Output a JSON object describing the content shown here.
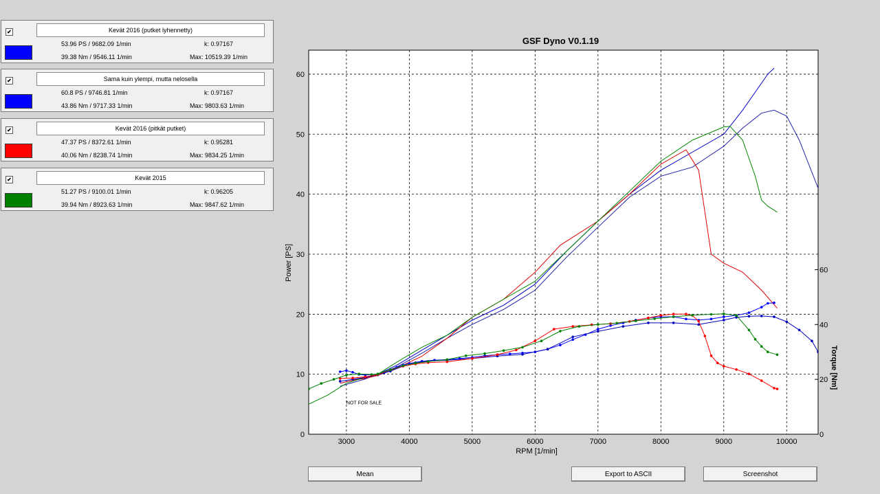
{
  "runs": [
    {
      "checked": true,
      "name": "Kevät 2016 (putket lyhennetty)",
      "color": "#0000ff",
      "power": "53.96 PS / 9682.09 1/min",
      "k": "k: 0.97167",
      "torque": "39.38 Nm / 9546.11 1/min",
      "max": "Max: 10519.39 1/min"
    },
    {
      "checked": true,
      "name": "Sama kuin ylempi, mutta nelosella",
      "color": "#0000ff",
      "power": "60.8 PS / 9746.81 1/min",
      "k": "k: 0.97167",
      "torque": "43.86 Nm / 9717.33 1/min",
      "max": "Max: 9803.63 1/min"
    },
    {
      "checked": true,
      "name": "Kevät 2016 (pitkät putket)",
      "color": "#ff0000",
      "power": "47.37 PS / 8372.61 1/min",
      "k": "k: 0.95281",
      "torque": "40.06 Nm / 8238.74 1/min",
      "max": "Max: 9834.25 1/min"
    },
    {
      "checked": true,
      "name": "Kevät 2015",
      "color": "#008000",
      "power": "51.27 PS / 9100.01 1/min",
      "k": "k: 0.96205",
      "torque": "39.94 Nm / 8923.63 1/min",
      "max": "Max: 9847.62 1/min"
    }
  ],
  "buttons": {
    "mean": "Mean",
    "export": "Export to ASCII",
    "screenshot": "Screenshot"
  },
  "chart_data": {
    "type": "line",
    "title": "GSF Dyno V0.1.19",
    "xlabel": "RPM [1/min]",
    "ylabel": "Power [PS]",
    "y2label": "Torque [Nm]",
    "xlim": [
      2400,
      10500
    ],
    "ylim": [
      0,
      64
    ],
    "y2lim": [
      0,
      140
    ],
    "xticks": [
      3000,
      4000,
      5000,
      6000,
      7000,
      8000,
      9000,
      10000
    ],
    "yticks": [
      0,
      10,
      20,
      30,
      40,
      50,
      60
    ],
    "y2ticks": [
      0,
      20,
      40,
      60
    ],
    "grid": true,
    "annotation": "NOT FOR SALE",
    "annotation_at": {
      "x": 3000,
      "y": 5
    },
    "power_series": [
      {
        "color": "#0000cc",
        "x": [
          2900,
          3100,
          3300,
          3500,
          3800,
          4200,
          4600,
          5000,
          5500,
          6000,
          6500,
          7000,
          7500,
          8000,
          8500,
          9000,
          9300,
          9500,
          9700,
          9800
        ],
        "y": [
          8.5,
          9.0,
          9.4,
          10.0,
          11.5,
          14.0,
          16.5,
          19.0,
          21.5,
          25.0,
          30.5,
          35.5,
          40.0,
          44.0,
          47.0,
          50.0,
          54.0,
          57.0,
          60.0,
          61.0
        ]
      },
      {
        "color": "#2222aa",
        "x": [
          2900,
          3100,
          3300,
          3500,
          3800,
          4200,
          4600,
          5000,
          5500,
          6000,
          6500,
          7000,
          7500,
          8000,
          8500,
          9000,
          9300,
          9600,
          9800,
          10000,
          10200,
          10500
        ],
        "y": [
          8.0,
          8.6,
          9.2,
          10.0,
          11.2,
          13.5,
          16.0,
          18.3,
          20.8,
          24.0,
          29.5,
          34.5,
          39.5,
          43.0,
          44.5,
          48.0,
          51.0,
          53.5,
          54.0,
          53.0,
          49.0,
          41.0
        ]
      },
      {
        "color": "#dd0000",
        "x": [
          2900,
          3100,
          3300,
          3500,
          3800,
          4200,
          4600,
          5000,
          5500,
          6000,
          6400,
          7000,
          7500,
          8000,
          8400,
          8600,
          8700,
          8800,
          9000,
          9300,
          9600,
          9850
        ],
        "y": [
          8.5,
          9.0,
          9.3,
          9.8,
          11.0,
          13.0,
          16.0,
          19.5,
          22.5,
          27.0,
          31.5,
          35.5,
          40.0,
          45.0,
          47.4,
          44.0,
          37.0,
          30.0,
          28.5,
          27.0,
          24.0,
          21.0
        ]
      },
      {
        "color": "#008800",
        "x": [
          2400,
          2700,
          3000,
          3300,
          3500,
          3800,
          4200,
          4600,
          5000,
          5500,
          6000,
          6500,
          7000,
          7500,
          8000,
          8500,
          9000,
          9100,
          9300,
          9500,
          9600,
          9700,
          9850
        ],
        "y": [
          5.0,
          6.5,
          8.5,
          9.5,
          10.0,
          12.0,
          14.5,
          16.5,
          19.5,
          22.5,
          25.5,
          30.5,
          35.5,
          40.5,
          45.5,
          49.0,
          51.2,
          51.3,
          49.0,
          43.0,
          39.0,
          38.0,
          37.0
        ]
      }
    ],
    "torque_series": [
      {
        "color": "#0000ff",
        "markers": true,
        "x": [
          2900,
          3000,
          3100,
          3200,
          3300,
          3400,
          3500,
          3600,
          3700,
          3800,
          3900,
          4000,
          4200,
          4400,
          4600,
          4800,
          5000,
          5200,
          5400,
          5600,
          5800,
          6000,
          6200,
          6400,
          6600,
          6800,
          7000,
          7200,
          7400,
          7600,
          7800,
          8000,
          8200,
          8400,
          8600,
          8800,
          9000,
          9200,
          9400,
          9600,
          9700,
          9800
        ],
        "y": [
          22.8,
          23.2,
          22.6,
          21.8,
          21.6,
          21.7,
          22.0,
          22.5,
          23.4,
          24.4,
          25.2,
          25.8,
          26.6,
          27.0,
          27.2,
          27.6,
          28.0,
          28.6,
          29.0,
          29.3,
          29.6,
          30.0,
          31.0,
          32.5,
          34.5,
          36.3,
          38.3,
          39.6,
          40.6,
          41.6,
          42.4,
          42.8,
          42.8,
          42.0,
          41.6,
          42.0,
          42.8,
          43.3,
          44.3,
          46.3,
          47.7,
          47.9
        ]
      },
      {
        "color": "#0000bb",
        "markers": true,
        "x": [
          2900,
          3100,
          3300,
          3500,
          3700,
          3900,
          4100,
          4300,
          4600,
          5000,
          5400,
          5800,
          6200,
          6600,
          7000,
          7400,
          7800,
          8200,
          8600,
          9000,
          9200,
          9400,
          9600,
          9800,
          10000,
          10200,
          10400,
          10500
        ],
        "y": [
          19.3,
          20.0,
          20.7,
          21.6,
          23.0,
          24.8,
          26.1,
          26.6,
          27.0,
          27.6,
          28.5,
          29.1,
          31.0,
          35.5,
          37.5,
          39.3,
          40.6,
          40.6,
          40.0,
          41.6,
          42.6,
          43.0,
          43.1,
          42.8,
          41.0,
          38.0,
          34.0,
          30.0
        ]
      },
      {
        "color": "#ff0000",
        "markers": true,
        "x": [
          2900,
          3100,
          3300,
          3500,
          3700,
          3900,
          4100,
          4300,
          4600,
          5000,
          5400,
          5700,
          6000,
          6300,
          6600,
          6900,
          7200,
          7500,
          7800,
          8000,
          8200,
          8400,
          8500,
          8600,
          8700,
          8800,
          8900,
          9000,
          9200,
          9400,
          9600,
          9800,
          9850
        ],
        "y": [
          20.3,
          20.5,
          20.9,
          21.7,
          23.5,
          24.8,
          25.6,
          26.1,
          26.4,
          27.6,
          29.0,
          30.7,
          34.0,
          38.3,
          39.3,
          39.9,
          40.3,
          41.1,
          42.4,
          43.3,
          43.8,
          43.8,
          43.3,
          41.2,
          35.8,
          28.6,
          26.0,
          24.8,
          23.6,
          22.0,
          19.5,
          16.8,
          16.5
        ]
      },
      {
        "color": "#008000",
        "markers": true,
        "x": [
          2400,
          2600,
          2800,
          3000,
          3200,
          3400,
          3500,
          3700,
          3900,
          4100,
          4300,
          4600,
          4900,
          5200,
          5500,
          5800,
          6100,
          6400,
          6700,
          7000,
          7300,
          7600,
          7900,
          8200,
          8500,
          8800,
          9000,
          9200,
          9400,
          9500,
          9600,
          9700,
          9850
        ],
        "y": [
          16.5,
          18.5,
          20.0,
          21.6,
          22.0,
          21.8,
          22.0,
          23.5,
          25.0,
          25.9,
          26.5,
          27.2,
          28.6,
          29.4,
          30.5,
          31.7,
          34.0,
          37.6,
          39.3,
          40.0,
          40.5,
          41.3,
          42.1,
          42.8,
          43.4,
          43.7,
          43.9,
          43.3,
          38.0,
          34.6,
          32.0,
          30.0,
          29.0
        ]
      }
    ]
  }
}
